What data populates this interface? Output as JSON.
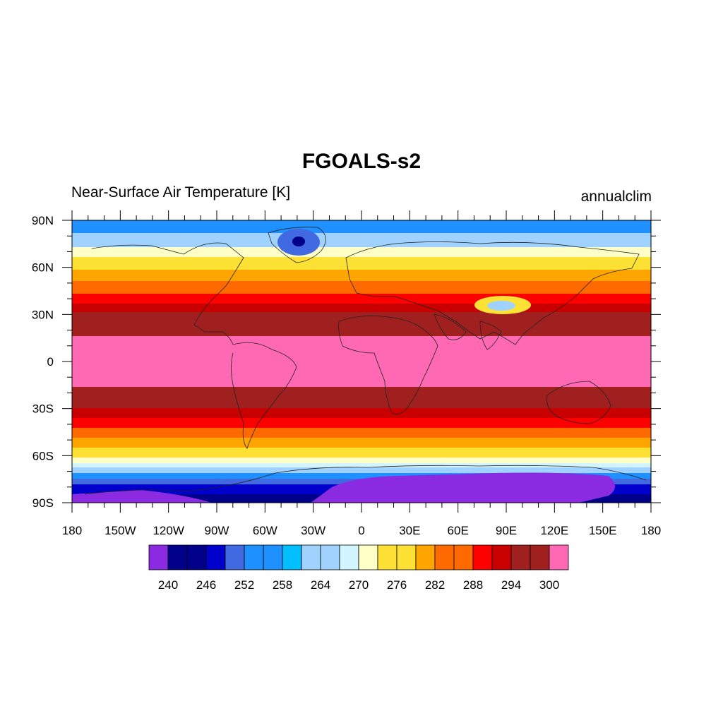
{
  "title": "FGOALS-s2",
  "left_subtitle": "Near-Surface Air Temperature [K]",
  "right_subtitle": "annualclim",
  "lat_labels": [
    "90N",
    "60N",
    "30N",
    "0",
    "30S",
    "60S",
    "90S"
  ],
  "lon_labels": [
    "180",
    "150W",
    "120W",
    "90W",
    "60W",
    "30W",
    "0",
    "30E",
    "60E",
    "90E",
    "120E",
    "150E",
    "180"
  ],
  "colorbar": {
    "colors": [
      "#8a2be2",
      "#00008b",
      "#00008b",
      "#0000cd",
      "#4169e1",
      "#1e90ff",
      "#1e90ff",
      "#00bfff",
      "#a0d2ff",
      "#a0d2ff",
      "#d2f5ff",
      "#ffffc8",
      "#fde135",
      "#fde135",
      "#ffa500",
      "#ff6a00",
      "#ff6a00",
      "#ff0000",
      "#c80000",
      "#a02020",
      "#a02020",
      "#ff69b4"
    ],
    "labels": [
      "240",
      "246",
      "252",
      "258",
      "264",
      "270",
      "276",
      "282",
      "288",
      "294",
      "300"
    ]
  },
  "chart_data": {
    "type": "heatmap",
    "title": "FGOALS-s2",
    "subtitle_left": "Near-Surface Air Temperature [K]",
    "subtitle_right": "annualclim",
    "x_range": [
      -180,
      180
    ],
    "y_range": [
      -90,
      90
    ],
    "colorbar_levels": [
      240,
      246,
      252,
      258,
      264,
      270,
      276,
      282,
      288,
      294,
      300
    ],
    "zonal_bands_K": [
      {
        "lat": [
          84,
          90
        ],
        "value": 258
      },
      {
        "lat": [
          72,
          84
        ],
        "value": 264
      },
      {
        "lat": [
          66,
          72
        ],
        "value": 270
      },
      {
        "lat": [
          60,
          66
        ],
        "value": 274
      },
      {
        "lat": [
          52,
          60
        ],
        "value": 278
      },
      {
        "lat": [
          45,
          52
        ],
        "value": 284
      },
      {
        "lat": [
          38,
          45
        ],
        "value": 290
      },
      {
        "lat": [
          30,
          38
        ],
        "value": 294
      },
      {
        "lat": [
          15,
          30
        ],
        "value": 298
      },
      {
        "lat": [
          -16,
          15
        ],
        "value": 301
      },
      {
        "lat": [
          -28,
          -16
        ],
        "value": 298
      },
      {
        "lat": [
          -35,
          -28
        ],
        "value": 294
      },
      {
        "lat": [
          -42,
          -35
        ],
        "value": 290
      },
      {
        "lat": [
          -48,
          -42
        ],
        "value": 286
      },
      {
        "lat": [
          -54,
          -48
        ],
        "value": 282
      },
      {
        "lat": [
          -60,
          -54
        ],
        "value": 278
      },
      {
        "lat": [
          -64,
          -60
        ],
        "value": 272
      },
      {
        "lat": [
          -67,
          -64
        ],
        "value": 266
      },
      {
        "lat": [
          -71,
          -67
        ],
        "value": 260
      },
      {
        "lat": [
          -74,
          -71
        ],
        "value": 254
      },
      {
        "lat": [
          -80,
          -74
        ],
        "value": 248
      },
      {
        "lat": [
          -90,
          -80
        ],
        "value": 240
      }
    ]
  }
}
